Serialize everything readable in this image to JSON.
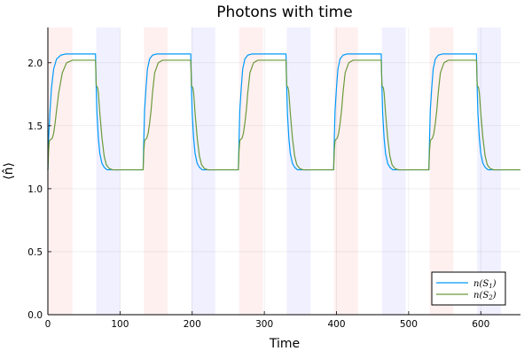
{
  "chart_data": {
    "type": "line",
    "title": "Photons with time",
    "xlabel": "Time",
    "ylabel": "⟨n̂⟩",
    "xlim": [
      0,
      655
    ],
    "ylim": [
      0,
      2.28
    ],
    "x_ticks": [
      0,
      100,
      200,
      300,
      400,
      500,
      600
    ],
    "y_ticks": [
      0.0,
      0.5,
      1.0,
      1.5,
      2.0
    ],
    "x_tick_labels": [
      "0",
      "100",
      "200",
      "300",
      "400",
      "500",
      "600"
    ],
    "y_tick_labels": [
      "0.0",
      "0.5",
      "1.0",
      "1.5",
      "2.0"
    ],
    "grid": true,
    "legend_position": "bottom-right",
    "shaded_bands": [
      {
        "kind": "red",
        "color": "#ff0000",
        "opacity": 0.06,
        "ranges": [
          [
            0,
            34
          ],
          [
            133,
            166
          ],
          [
            265,
            298
          ],
          [
            397,
            430
          ],
          [
            529,
            562
          ]
        ]
      },
      {
        "kind": "blue",
        "color": "#0000ff",
        "opacity": 0.06,
        "ranges": [
          [
            67,
            100
          ],
          [
            199,
            232
          ],
          [
            331,
            364
          ],
          [
            463,
            496
          ],
          [
            595,
            628
          ]
        ]
      }
    ],
    "series": [
      {
        "name": "n(S1)",
        "color": "#009AFA",
        "x": [
          0,
          1,
          3,
          5,
          8,
          12,
          18,
          25,
          34,
          66,
          67,
          68,
          70,
          72,
          75,
          78,
          82,
          88,
          100,
          132,
          133,
          134,
          136,
          138,
          141,
          145,
          151,
          158,
          166,
          198,
          199,
          200,
          202,
          204,
          207,
          210,
          214,
          220,
          232,
          264,
          265,
          266,
          268,
          270,
          273,
          277,
          283,
          290,
          298,
          330,
          331,
          332,
          334,
          336,
          339,
          342,
          346,
          352,
          364,
          396,
          397,
          398,
          400,
          402,
          405,
          409,
          415,
          422,
          430,
          462,
          463,
          464,
          466,
          468,
          471,
          474,
          478,
          484,
          496,
          528,
          529,
          530,
          532,
          534,
          537,
          541,
          547,
          554,
          562,
          594,
          595,
          596,
          598,
          600,
          603,
          606,
          610,
          616,
          628,
          655
        ],
        "y": [
          1.15,
          1.4,
          1.62,
          1.8,
          1.95,
          2.03,
          2.06,
          2.07,
          2.07,
          2.07,
          1.8,
          1.6,
          1.4,
          1.28,
          1.2,
          1.17,
          1.15,
          1.15,
          1.15,
          1.15,
          1.4,
          1.62,
          1.8,
          1.95,
          2.03,
          2.06,
          2.07,
          2.07,
          2.07,
          2.07,
          1.8,
          1.6,
          1.4,
          1.28,
          1.2,
          1.17,
          1.15,
          1.15,
          1.15,
          1.15,
          1.4,
          1.62,
          1.8,
          1.95,
          2.03,
          2.06,
          2.07,
          2.07,
          2.07,
          2.07,
          1.8,
          1.6,
          1.4,
          1.28,
          1.2,
          1.17,
          1.15,
          1.15,
          1.15,
          1.15,
          1.4,
          1.62,
          1.8,
          1.95,
          2.03,
          2.06,
          2.07,
          2.07,
          2.07,
          2.07,
          1.8,
          1.6,
          1.4,
          1.28,
          1.2,
          1.17,
          1.15,
          1.15,
          1.15,
          1.15,
          1.4,
          1.62,
          1.8,
          1.95,
          2.03,
          2.06,
          2.07,
          2.07,
          2.07,
          2.07,
          1.8,
          1.6,
          1.4,
          1.28,
          1.2,
          1.17,
          1.15,
          1.15,
          1.15,
          1.15
        ]
      },
      {
        "name": "n(S2)",
        "color": "#6A9A3A",
        "x": [
          0,
          1,
          2,
          4,
          6,
          8,
          10,
          12,
          15,
          20,
          26,
          34,
          66,
          67,
          68,
          69,
          70,
          72,
          75,
          78,
          81,
          85,
          90,
          100,
          132,
          133,
          134,
          135,
          137,
          139,
          141,
          143,
          145,
          148,
          153,
          159,
          166,
          198,
          199,
          200,
          201,
          202,
          204,
          207,
          210,
          213,
          217,
          222,
          232,
          264,
          265,
          266,
          267,
          269,
          271,
          273,
          275,
          277,
          280,
          285,
          291,
          298,
          330,
          331,
          332,
          333,
          334,
          336,
          339,
          342,
          345,
          349,
          354,
          364,
          396,
          397,
          398,
          399,
          401,
          403,
          405,
          407,
          409,
          412,
          417,
          423,
          430,
          462,
          463,
          464,
          465,
          466,
          468,
          471,
          474,
          477,
          481,
          486,
          496,
          528,
          529,
          530,
          531,
          533,
          535,
          537,
          539,
          541,
          544,
          549,
          555,
          562,
          594,
          595,
          596,
          597,
          598,
          600,
          603,
          606,
          609,
          613,
          618,
          628,
          655
        ],
        "y": [
          1.15,
          1.3,
          1.38,
          1.39,
          1.4,
          1.44,
          1.52,
          1.62,
          1.76,
          1.92,
          2.0,
          2.02,
          2.02,
          1.82,
          1.81,
          1.8,
          1.76,
          1.6,
          1.4,
          1.26,
          1.19,
          1.16,
          1.15,
          1.15,
          1.15,
          1.3,
          1.38,
          1.39,
          1.4,
          1.44,
          1.52,
          1.62,
          1.76,
          1.92,
          2.0,
          2.02,
          2.02,
          2.02,
          1.82,
          1.81,
          1.8,
          1.76,
          1.6,
          1.4,
          1.26,
          1.19,
          1.16,
          1.15,
          1.15,
          1.15,
          1.3,
          1.38,
          1.39,
          1.4,
          1.44,
          1.52,
          1.62,
          1.76,
          1.92,
          2.0,
          2.02,
          2.02,
          2.02,
          1.82,
          1.81,
          1.8,
          1.76,
          1.6,
          1.4,
          1.26,
          1.19,
          1.16,
          1.15,
          1.15,
          1.15,
          1.3,
          1.38,
          1.39,
          1.4,
          1.44,
          1.52,
          1.62,
          1.76,
          1.92,
          2.0,
          2.02,
          2.02,
          2.02,
          1.82,
          1.81,
          1.8,
          1.76,
          1.6,
          1.4,
          1.26,
          1.19,
          1.16,
          1.15,
          1.15,
          1.15,
          1.3,
          1.38,
          1.39,
          1.4,
          1.44,
          1.52,
          1.62,
          1.76,
          1.92,
          2.0,
          2.02,
          2.02,
          2.02,
          1.82,
          1.81,
          1.8,
          1.76,
          1.6,
          1.4,
          1.26,
          1.19,
          1.16,
          1.15,
          1.15,
          1.15
        ]
      }
    ],
    "legend": {
      "entries": [
        {
          "label_main": "n(S",
          "label_sub": "1",
          "label_end": ")",
          "color": "#009AFA"
        },
        {
          "label_main": "n(S",
          "label_sub": "2",
          "label_end": ")",
          "color": "#6A9A3A"
        }
      ]
    }
  }
}
